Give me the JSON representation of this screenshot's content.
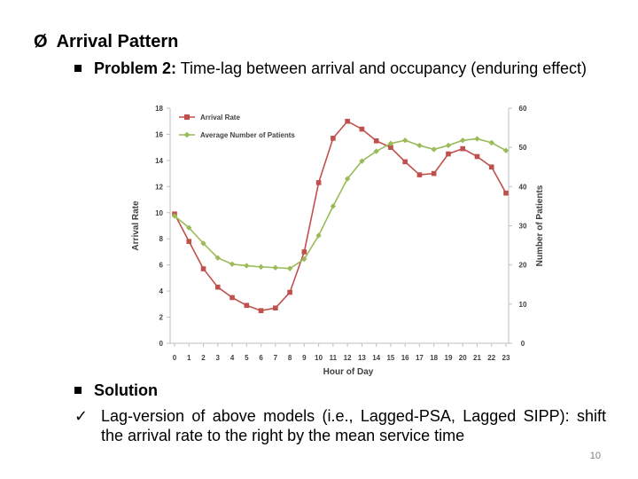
{
  "slide": {
    "heading_bullet": "Ø",
    "heading": "Arrival Pattern",
    "problem_label": "Problem 2:",
    "problem_text": " Time-lag between arrival and occupancy (enduring effect)",
    "solution_label": "Solution",
    "solution_check": "ü",
    "solution_text": "Lag-version of above models (i.e., Lagged-PSA, Lagged SIPP): shift the arrival rate to the right by the mean service time",
    "page_number": "10"
  },
  "chart_data": {
    "type": "line",
    "title": "",
    "xlabel": "Hour of Day",
    "ylabel": "Arrival Rate",
    "y2label": "Number of Patients",
    "x": [
      0,
      1,
      2,
      3,
      4,
      5,
      6,
      7,
      8,
      9,
      10,
      11,
      12,
      13,
      14,
      15,
      16,
      17,
      18,
      19,
      20,
      21,
      22,
      23
    ],
    "ylim": [
      0,
      18
    ],
    "y2lim": [
      0,
      60
    ],
    "yticks": [
      0,
      2,
      4,
      6,
      8,
      10,
      12,
      14,
      16,
      18
    ],
    "y2ticks": [
      0,
      10,
      20,
      30,
      40,
      50,
      60
    ],
    "legend_position": "top-left",
    "series": [
      {
        "name": "Arrival Rate",
        "axis": "left",
        "color": "#c0504d",
        "marker": "square",
        "values": [
          9.9,
          7.8,
          5.7,
          4.3,
          3.5,
          2.9,
          2.5,
          2.7,
          3.9,
          7.0,
          12.3,
          15.7,
          17.0,
          16.4,
          15.5,
          15.0,
          13.9,
          12.9,
          13.0,
          14.5,
          14.9,
          14.3,
          13.5,
          11.5
        ]
      },
      {
        "name": "Average Number of Patients",
        "axis": "right",
        "color": "#9bbb59",
        "marker": "diamond",
        "values": [
          32.5,
          29.5,
          25.5,
          21.8,
          20.2,
          19.8,
          19.5,
          19.3,
          19.1,
          21.5,
          27.5,
          35.0,
          42.0,
          46.5,
          49.0,
          51.0,
          51.8,
          50.5,
          49.5,
          50.5,
          51.8,
          52.2,
          51.2,
          49.2
        ]
      }
    ]
  }
}
